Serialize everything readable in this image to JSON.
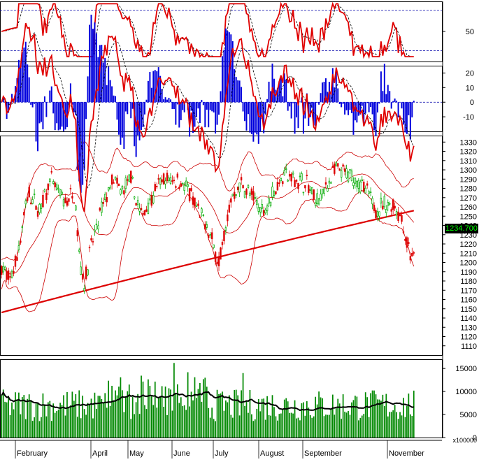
{
  "chart_data": {
    "type": "candlestick",
    "panels": [
      {
        "name": "oscillator",
        "type": "line",
        "y_ticks": [
          50
        ],
        "reference_lines": [
          85,
          18
        ],
        "series": [
          {
            "color": "#e00000",
            "values": []
          },
          {
            "color": "#000000",
            "style": "dashed",
            "values": []
          }
        ]
      },
      {
        "name": "macd",
        "type": "line+histogram",
        "y_ticks": [
          20,
          10,
          0,
          -10
        ],
        "ylim": [
          -20,
          25
        ],
        "histogram_color": "#0000dd",
        "series": [
          {
            "color": "#e00000"
          },
          {
            "color": "#000000",
            "style": "dashed"
          }
        ]
      },
      {
        "name": "price",
        "type": "candlestick",
        "y_ticks": [
          1330,
          1320,
          1310,
          1300,
          1290,
          1280,
          1270,
          1260,
          1250,
          1240,
          1230,
          1220,
          1210,
          1200,
          1190,
          1180,
          1170,
          1160,
          1150,
          1140,
          1130,
          1120,
          1110
        ],
        "ylim": [
          1100,
          1337
        ],
        "last_price_label": "1234.700",
        "up_color": "#00aa00",
        "down_color": "#dd0000",
        "overlays": [
          "bollinger_bands",
          "moving_average"
        ]
      },
      {
        "name": "volume",
        "type": "bar",
        "y_ticks": [
          15000,
          10000,
          5000,
          0
        ],
        "ylim": [
          0,
          17000
        ],
        "unit_label": "x100000",
        "bar_color": "#008800",
        "average_line_color": "#000000"
      }
    ],
    "x_labels": [
      "February",
      "April",
      "May",
      "June",
      "July",
      "August",
      "September",
      "November"
    ]
  }
}
